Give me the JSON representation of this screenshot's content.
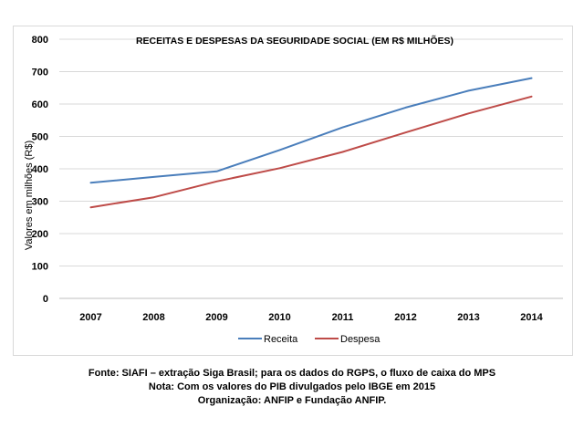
{
  "chart_data": {
    "type": "line",
    "title": "RECEITAS E DESPESAS DA SEGURIDADE SOCIAL (EM R$ MILHÕES)",
    "ylabel": "Valores em milhões (R$)",
    "xlabel": "",
    "categories": [
      "2007",
      "2008",
      "2009",
      "2010",
      "2011",
      "2012",
      "2013",
      "2014"
    ],
    "ylim": [
      0,
      800
    ],
    "yticks": [
      0,
      100,
      200,
      300,
      400,
      500,
      600,
      700,
      800
    ],
    "grid": true,
    "legend_position": "bottom",
    "series": [
      {
        "name": "Receita",
        "color": "#4a7ebb",
        "values": [
          357,
          375,
          392,
          458,
          528,
          589,
          641,
          680
        ]
      },
      {
        "name": "Despesa",
        "color": "#be4b48",
        "values": [
          281,
          312,
          361,
          402,
          452,
          512,
          571,
          623
        ]
      }
    ]
  },
  "source": {
    "line1": "Fonte: SIAFI – extração Siga Brasil; para os dados do RGPS, o fluxo de caixa do MPS",
    "line2": "Nota: Com os valores do PIB divulgados pelo IBGE em 2015",
    "line3": "Organização: ANFIP e Fundação ANFIP."
  }
}
